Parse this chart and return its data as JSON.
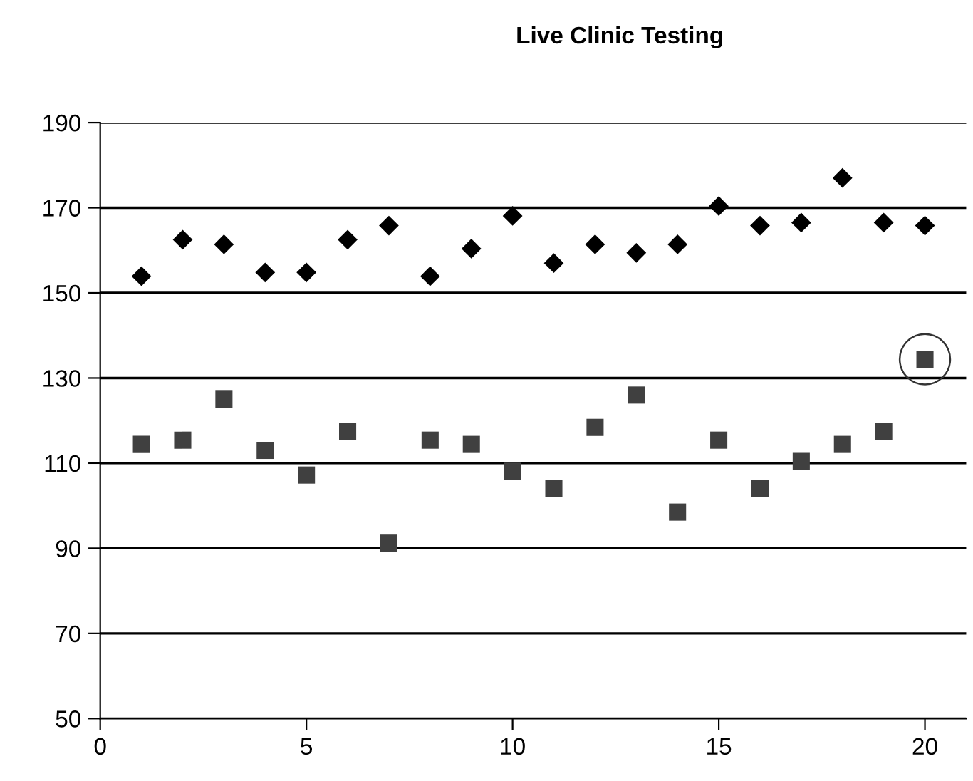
{
  "chart_data": {
    "type": "scatter",
    "title": "Live Clinic Testing",
    "x": [
      1,
      2,
      3,
      4,
      5,
      6,
      7,
      8,
      9,
      10,
      11,
      12,
      13,
      14,
      15,
      16,
      17,
      18,
      19,
      20
    ],
    "series": [
      {
        "color": "#000000",
        "marker": "diamond",
        "values": [
          153.9,
          162.5,
          161.4,
          154.8,
          154.8,
          162.5,
          165.8,
          153.9,
          160.4,
          168.1,
          157,
          161.4,
          159.4,
          161.4,
          170.4,
          165.8,
          166.5,
          177,
          166.5,
          165.8
        ]
      },
      {
        "color": "#404040",
        "marker": "square",
        "values": [
          114.4,
          115.4,
          125,
          113,
          107.2,
          117.4,
          91.2,
          115.4,
          114.4,
          108.1,
          104,
          118.4,
          126,
          98.5,
          115.4,
          104,
          110.4,
          114.4,
          117.4,
          134.4
        ]
      }
    ],
    "xlim": [
      0,
      21
    ],
    "xticks": [
      0,
      5,
      10,
      15,
      20
    ],
    "ylim": [
      50,
      190
    ],
    "yticks": [
      50,
      70,
      90,
      110,
      130,
      150,
      170,
      190
    ],
    "grid": "y",
    "legend": false
  }
}
